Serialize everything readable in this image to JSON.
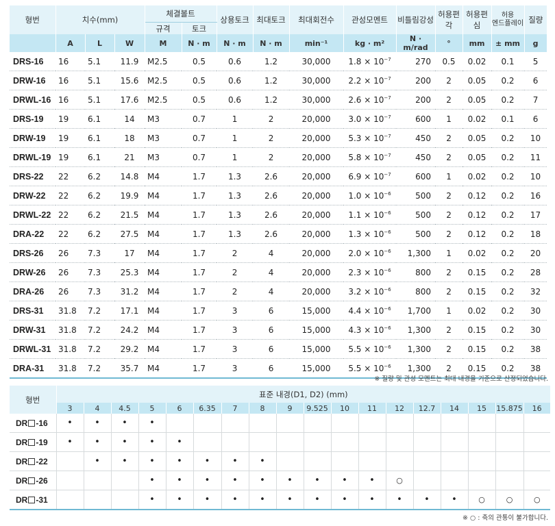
{
  "spec": {
    "h_model": "형번",
    "h_dims": "치수(mm)",
    "h_bolt": "체결볼트",
    "h_bolt_spec": "규격",
    "h_bolt_torque": "토크",
    "h_rated_torque": "상용토크",
    "h_max_torque": "최대토크",
    "h_max_speed": "최대회전수",
    "h_inertia": "관성모멘트",
    "h_stiffness": "비틀림강성",
    "h_angular": "허용편각",
    "h_parallel": "허용편심",
    "h_endplay_1": "허용",
    "h_endplay_2": "엔드플레이",
    "h_mass": "질량",
    "units": [
      "A",
      "L",
      "W",
      "M",
      "N · m",
      "N · m",
      "N · m",
      "min⁻¹",
      "kg · m²",
      "N · m/rad",
      "°",
      "mm",
      "± mm",
      "g"
    ],
    "rows": [
      {
        "model": "DRS-16",
        "A": "16",
        "L": "5.1",
        "W": "11.9",
        "M": "M2.5",
        "bt": "0.5",
        "rt": "0.6",
        "mt": "1.2",
        "speed": "30,000",
        "im": "1.8 × 10",
        "ie": "−7",
        "stiff": "270",
        "ang": "0.5",
        "par": "0.02",
        "end": "0.1",
        "mass": "5"
      },
      {
        "model": "DRW-16",
        "A": "16",
        "L": "5.1",
        "W": "15.6",
        "M": "M2.5",
        "bt": "0.5",
        "rt": "0.6",
        "mt": "1.2",
        "speed": "30,000",
        "im": "2.2 × 10",
        "ie": "−7",
        "stiff": "200",
        "ang": "2",
        "par": "0.05",
        "end": "0.2",
        "mass": "6"
      },
      {
        "model": "DRWL-16",
        "A": "16",
        "L": "5.1",
        "W": "17.6",
        "M": "M2.5",
        "bt": "0.5",
        "rt": "0.6",
        "mt": "1.2",
        "speed": "30,000",
        "im": "2.6 × 10",
        "ie": "−7",
        "stiff": "200",
        "ang": "2",
        "par": "0.05",
        "end": "0.2",
        "mass": "7"
      },
      {
        "model": "DRS-19",
        "A": "19",
        "L": "6.1",
        "W": "14",
        "M": "M3",
        "bt": "0.7",
        "rt": "1",
        "mt": "2",
        "speed": "20,000",
        "im": "3.0 × 10",
        "ie": "−7",
        "stiff": "600",
        "ang": "1",
        "par": "0.02",
        "end": "0.1",
        "mass": "6"
      },
      {
        "model": "DRW-19",
        "A": "19",
        "L": "6.1",
        "W": "18",
        "M": "M3",
        "bt": "0.7",
        "rt": "1",
        "mt": "2",
        "speed": "20,000",
        "im": "5.3 × 10",
        "ie": "−7",
        "stiff": "450",
        "ang": "2",
        "par": "0.05",
        "end": "0.2",
        "mass": "10"
      },
      {
        "model": "DRWL-19",
        "A": "19",
        "L": "6.1",
        "W": "21",
        "M": "M3",
        "bt": "0.7",
        "rt": "1",
        "mt": "2",
        "speed": "20,000",
        "im": "5.8 × 10",
        "ie": "−7",
        "stiff": "450",
        "ang": "2",
        "par": "0.05",
        "end": "0.2",
        "mass": "11"
      },
      {
        "model": "DRS-22",
        "A": "22",
        "L": "6.2",
        "W": "14.8",
        "M": "M4",
        "bt": "1.7",
        "rt": "1.3",
        "mt": "2.6",
        "speed": "20,000",
        "im": "6.9 × 10",
        "ie": "−7",
        "stiff": "600",
        "ang": "1",
        "par": "0.02",
        "end": "0.2",
        "mass": "10"
      },
      {
        "model": "DRW-22",
        "A": "22",
        "L": "6.2",
        "W": "19.9",
        "M": "M4",
        "bt": "1.7",
        "rt": "1.3",
        "mt": "2.6",
        "speed": "20,000",
        "im": "1.0 × 10",
        "ie": "−6",
        "stiff": "500",
        "ang": "2",
        "par": "0.12",
        "end": "0.2",
        "mass": "16"
      },
      {
        "model": "DRWL-22",
        "A": "22",
        "L": "6.2",
        "W": "21.5",
        "M": "M4",
        "bt": "1.7",
        "rt": "1.3",
        "mt": "2.6",
        "speed": "20,000",
        "im": "1.1 × 10",
        "ie": "−6",
        "stiff": "500",
        "ang": "2",
        "par": "0.12",
        "end": "0.2",
        "mass": "17"
      },
      {
        "model": "DRA-22",
        "A": "22",
        "L": "6.2",
        "W": "27.5",
        "M": "M4",
        "bt": "1.7",
        "rt": "1.3",
        "mt": "2.6",
        "speed": "20,000",
        "im": "1.3 × 10",
        "ie": "−6",
        "stiff": "500",
        "ang": "2",
        "par": "0.12",
        "end": "0.2",
        "mass": "18"
      },
      {
        "model": "DRS-26",
        "A": "26",
        "L": "7.3",
        "W": "17",
        "M": "M4",
        "bt": "1.7",
        "rt": "2",
        "mt": "4",
        "speed": "20,000",
        "im": "2.0 × 10",
        "ie": "−6",
        "stiff": "1,300",
        "ang": "1",
        "par": "0.02",
        "end": "0.2",
        "mass": "20"
      },
      {
        "model": "DRW-26",
        "A": "26",
        "L": "7.3",
        "W": "25.3",
        "M": "M4",
        "bt": "1.7",
        "rt": "2",
        "mt": "4",
        "speed": "20,000",
        "im": "2.3 × 10",
        "ie": "−6",
        "stiff": "800",
        "ang": "2",
        "par": "0.15",
        "end": "0.2",
        "mass": "28"
      },
      {
        "model": "DRA-26",
        "A": "26",
        "L": "7.3",
        "W": "31.2",
        "M": "M4",
        "bt": "1.7",
        "rt": "2",
        "mt": "4",
        "speed": "20,000",
        "im": "3.2 × 10",
        "ie": "−6",
        "stiff": "800",
        "ang": "2",
        "par": "0.15",
        "end": "0.2",
        "mass": "32"
      },
      {
        "model": "DRS-31",
        "A": "31.8",
        "L": "7.2",
        "W": "17.1",
        "M": "M4",
        "bt": "1.7",
        "rt": "3",
        "mt": "6",
        "speed": "15,000",
        "im": "4.4 × 10",
        "ie": "−6",
        "stiff": "1,700",
        "ang": "1",
        "par": "0.02",
        "end": "0.2",
        "mass": "30"
      },
      {
        "model": "DRW-31",
        "A": "31.8",
        "L": "7.2",
        "W": "24.2",
        "M": "M4",
        "bt": "1.7",
        "rt": "3",
        "mt": "6",
        "speed": "15,000",
        "im": "4.3 × 10",
        "ie": "−6",
        "stiff": "1,300",
        "ang": "2",
        "par": "0.15",
        "end": "0.2",
        "mass": "30"
      },
      {
        "model": "DRWL-31",
        "A": "31.8",
        "L": "7.2",
        "W": "29.2",
        "M": "M4",
        "bt": "1.7",
        "rt": "3",
        "mt": "6",
        "speed": "15,000",
        "im": "5.5 × 10",
        "ie": "−6",
        "stiff": "1,300",
        "ang": "2",
        "par": "0.15",
        "end": "0.2",
        "mass": "38"
      },
      {
        "model": "DRA-31",
        "A": "31.8",
        "L": "7.2",
        "W": "35.7",
        "M": "M4",
        "bt": "1.7",
        "rt": "3",
        "mt": "6",
        "speed": "15,000",
        "im": "5.5 × 10",
        "ie": "−6",
        "stiff": "1,300",
        "ang": "2",
        "par": "0.15",
        "end": "0.2",
        "mass": "38"
      }
    ],
    "note": "※ 질량 및 관성 모멘트는 최대 내경을 기준으로 산정되었습니다."
  },
  "bore": {
    "h_model": "형번",
    "h_bore": "표준 내경(D1, D2) (mm)",
    "sizes": [
      "3",
      "4",
      "4.5",
      "5",
      "6",
      "6.35",
      "7",
      "8",
      "9",
      "9.525",
      "10",
      "11",
      "12",
      "12.7",
      "14",
      "15",
      "15.875",
      "16"
    ],
    "rows": [
      {
        "prefix": "DR",
        "suffix": "-16",
        "marks": [
          "•",
          "•",
          "•",
          "•",
          "",
          "",
          "",
          "",
          "",
          "",
          "",
          "",
          "",
          "",
          "",
          "",
          "",
          ""
        ]
      },
      {
        "prefix": "DR",
        "suffix": "-19",
        "marks": [
          "•",
          "•",
          "•",
          "•",
          "•",
          "",
          "",
          "",
          "",
          "",
          "",
          "",
          "",
          "",
          "",
          "",
          "",
          ""
        ]
      },
      {
        "prefix": "DR",
        "suffix": "-22",
        "marks": [
          "",
          "•",
          "•",
          "•",
          "•",
          "•",
          "•",
          "•",
          "",
          "",
          "",
          "",
          "",
          "",
          "",
          "",
          "",
          ""
        ]
      },
      {
        "prefix": "DR",
        "suffix": "-26",
        "marks": [
          "",
          "",
          "",
          "•",
          "•",
          "•",
          "•",
          "•",
          "•",
          "•",
          "•",
          "•",
          "○",
          "",
          "",
          "",
          "",
          ""
        ]
      },
      {
        "prefix": "DR",
        "suffix": "-31",
        "marks": [
          "",
          "",
          "",
          "•",
          "•",
          "•",
          "•",
          "•",
          "•",
          "•",
          "•",
          "•",
          "•",
          "•",
          "•",
          "○",
          "○",
          "○"
        ]
      }
    ],
    "note": "※ ○ : 축의 관통이 불가합니다."
  }
}
